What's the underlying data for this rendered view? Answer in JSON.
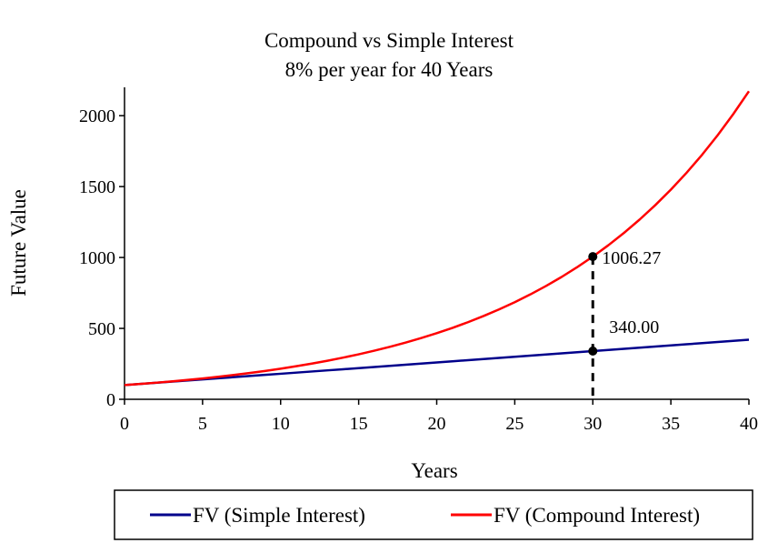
{
  "chart_data": {
    "type": "line",
    "title": "Compound vs Simple Interest",
    "subtitle": "8% per year for 40 Years",
    "xlabel": "Years",
    "ylabel": "Future Value",
    "xlim": [
      0,
      40
    ],
    "ylim": [
      0,
      2200
    ],
    "x_ticks": [
      0,
      5,
      10,
      15,
      20,
      25,
      30,
      35,
      40
    ],
    "y_ticks": [
      0,
      500,
      1000,
      1500,
      2000
    ],
    "grid": false,
    "legend_position": "bottom",
    "x": [
      0,
      1,
      2,
      3,
      4,
      5,
      6,
      7,
      8,
      9,
      10,
      11,
      12,
      13,
      14,
      15,
      16,
      17,
      18,
      19,
      20,
      21,
      22,
      23,
      24,
      25,
      26,
      27,
      28,
      29,
      30,
      31,
      32,
      33,
      34,
      35,
      36,
      37,
      38,
      39,
      40
    ],
    "series": [
      {
        "name": "FV (Simple Interest)",
        "color": "#00008b",
        "values": [
          100,
          108,
          116,
          124,
          132,
          140,
          148,
          156,
          164,
          172,
          180,
          188,
          196,
          204,
          212,
          220,
          228,
          236,
          244,
          252,
          260,
          268,
          276,
          284,
          292,
          300,
          308,
          316,
          324,
          332,
          340,
          348,
          356,
          364,
          372,
          380,
          388,
          396,
          404,
          412,
          420
        ]
      },
      {
        "name": "FV (Compound Interest)",
        "color": "#ff0000",
        "values": [
          100.0,
          108.0,
          116.64,
          125.97,
          136.05,
          146.93,
          158.69,
          171.38,
          185.09,
          199.9,
          215.89,
          233.16,
          251.82,
          271.96,
          293.72,
          317.22,
          342.59,
          370.0,
          399.6,
          431.57,
          466.1,
          503.38,
          543.65,
          587.15,
          634.12,
          684.85,
          739.64,
          798.81,
          862.71,
          931.73,
          1006.27,
          1086.77,
          1173.71,
          1267.61,
          1369.02,
          1478.53,
          1596.82,
          1724.56,
          1862.53,
          2011.53,
          2172.45
        ]
      }
    ],
    "annotations": [
      {
        "x": 30,
        "y": 1006.27,
        "label": "1006.27"
      },
      {
        "x": 30,
        "y": 340,
        "label": "340.00"
      }
    ]
  },
  "x_tick_labels": [
    "0",
    "5",
    "10",
    "15",
    "20",
    "25",
    "30",
    "35",
    "40"
  ],
  "y_tick_labels": [
    "0",
    "500",
    "1000",
    "1500",
    "2000"
  ],
  "legend": {
    "simple_label": "FV (Simple Interest)",
    "compound_label": "FV (Compound Interest)"
  }
}
